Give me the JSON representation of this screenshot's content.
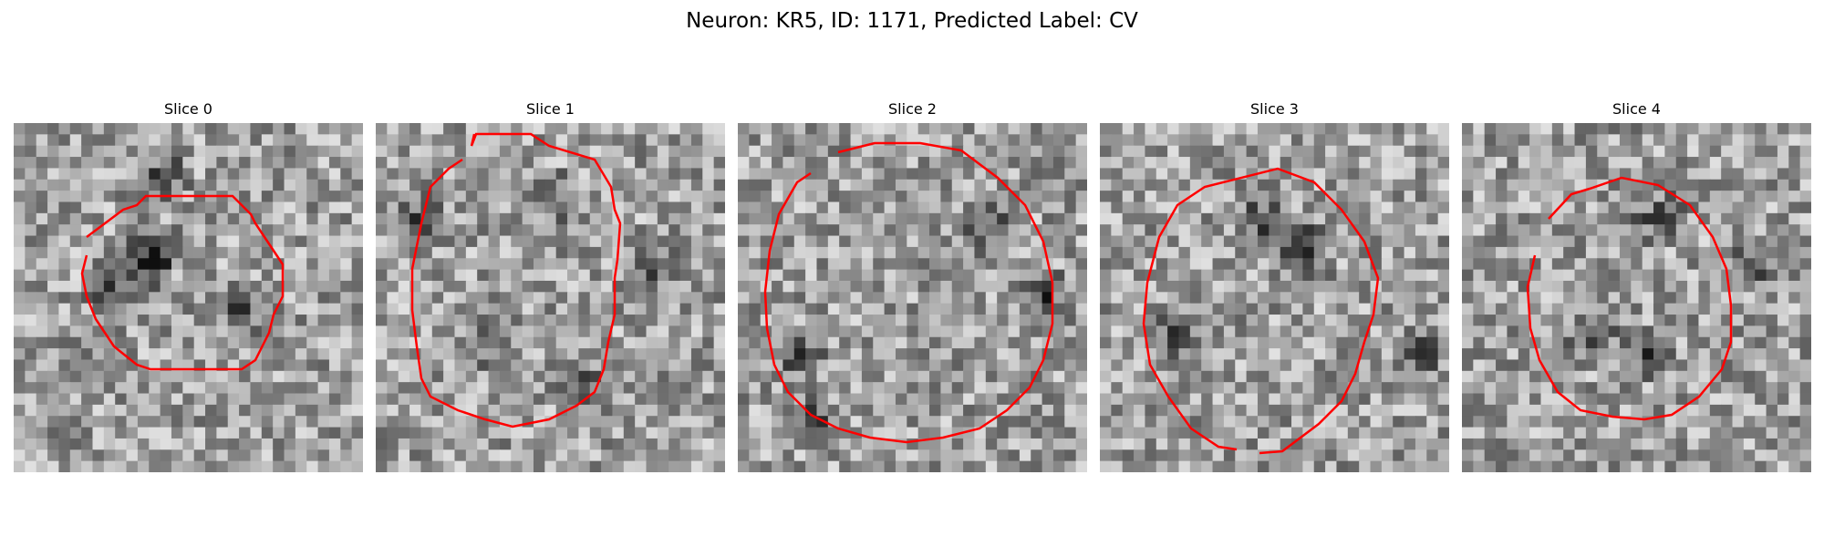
{
  "figure": {
    "title": "Neuron: KR5, ID: 1171, Predicted Label: CV"
  },
  "panels": [
    {
      "label": "Slice 0",
      "contour_color": "#ff0000"
    },
    {
      "label": "Slice 1",
      "contour_color": "#ff0000"
    },
    {
      "label": "Slice 2",
      "contour_color": "#ff0000"
    },
    {
      "label": "Slice 3",
      "contour_color": "#ff0000"
    },
    {
      "label": "Slice 4",
      "contour_color": "#ff0000"
    }
  ]
}
